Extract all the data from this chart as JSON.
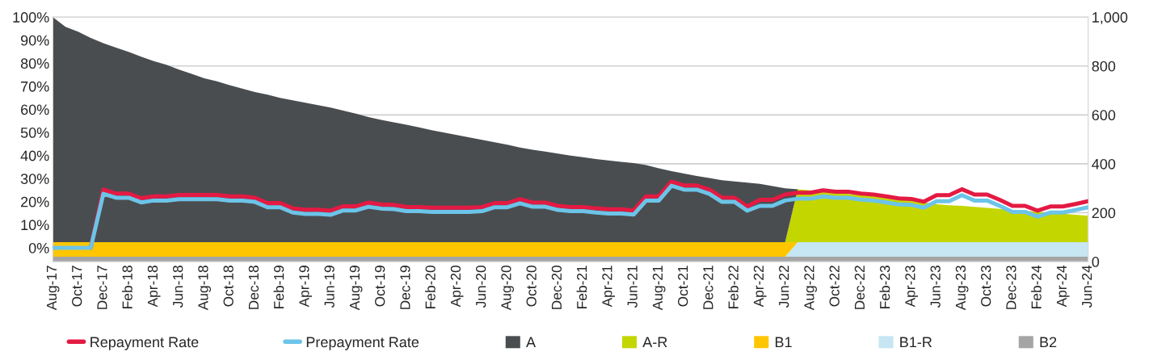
{
  "chart_data": {
    "type": "area",
    "stacked": true,
    "grid": "y",
    "legend": "bottom",
    "categories": [
      "Aug-17",
      null,
      "Oct-17",
      null,
      "Dec-17",
      null,
      "Feb-18",
      null,
      "Apr-18",
      null,
      "Jun-18",
      null,
      "Aug-18",
      null,
      "Oct-18",
      null,
      "Dec-18",
      null,
      "Feb-19",
      null,
      "Apr-19",
      null,
      "Jun-19",
      null,
      "Aug-19",
      null,
      "Oct-19",
      null,
      "Dec-19",
      null,
      "Feb-20",
      null,
      "Apr-20",
      null,
      "Jun-20",
      null,
      "Aug-20",
      null,
      "Oct-20",
      null,
      "Dec-20",
      null,
      "Feb-21",
      null,
      "Apr-21",
      null,
      "Jun-21",
      null,
      "Aug-21",
      null,
      "Oct-21",
      null,
      "Dec-21",
      null,
      "Feb-22",
      null,
      "Apr-22",
      null,
      "Jun-22",
      null,
      "Aug-22",
      null,
      "Oct-22",
      null,
      "Dec-22",
      null,
      "Feb-23",
      null,
      "Apr-23",
      null,
      "Jun-23",
      null,
      "Aug-23",
      null,
      "Oct-23",
      null,
      "Dec-23",
      null,
      "Feb-24",
      null,
      "Apr-24",
      null,
      "Jun-24"
    ],
    "ylim": [
      -6,
      100
    ],
    "yticks": [
      {
        "value": 0,
        "label": "0%"
      },
      {
        "value": 10,
        "label": "10%"
      },
      {
        "value": 20,
        "label": "20%"
      },
      {
        "value": 30,
        "label": "30%"
      },
      {
        "value": 40,
        "label": "40%"
      },
      {
        "value": 50,
        "label": "50%"
      },
      {
        "value": 60,
        "label": "60%"
      },
      {
        "value": 70,
        "label": "70%"
      },
      {
        "value": 80,
        "label": "80%"
      },
      {
        "value": 90,
        "label": "90%"
      },
      {
        "value": 100,
        "label": "100%"
      }
    ],
    "y2lim": [
      0,
      1000
    ],
    "y2ticks": [
      0,
      200,
      400,
      600,
      800,
      {
        "value": 1000,
        "label": "1,000"
      }
    ],
    "series": [
      {
        "name": "Repayment Rate",
        "type": "line",
        "axis": "y",
        "color": "#e31a43",
        "values": [
          null,
          null,
          null,
          0,
          25.2,
          23.5,
          23.5,
          21.5,
          22.3,
          22.3,
          22.9,
          22.9,
          22.9,
          22.9,
          22.3,
          22.3,
          21.7,
          19.4,
          19.4,
          17.1,
          16.5,
          16.5,
          16.1,
          18.0,
          18.0,
          19.6,
          18.8,
          18.6,
          17.7,
          17.7,
          17.4,
          17.4,
          17.4,
          17.4,
          17.7,
          19.4,
          19.4,
          21.1,
          19.6,
          19.6,
          18.2,
          17.7,
          17.7,
          17.1,
          16.7,
          16.7,
          16.2,
          22.3,
          22.3,
          28.7,
          27.0,
          27.0,
          25.2,
          21.7,
          21.7,
          17.9,
          20.8,
          20.8,
          23.1,
          23.9,
          23.9,
          24.9,
          24.3,
          24.3,
          23.5,
          23.1,
          22.3,
          21.4,
          21.2,
          20.0,
          22.8,
          22.8,
          25.4,
          23.1,
          23.1,
          20.8,
          18.2,
          18.2,
          16.1,
          17.9,
          17.9,
          19.0,
          20.2
        ]
      },
      {
        "name": "Prepayment Rate",
        "type": "line",
        "axis": "y",
        "color": "#6cc4e8",
        "values": [
          0,
          0,
          0,
          0,
          23.4,
          21.7,
          21.7,
          19.7,
          20.5,
          20.5,
          21.1,
          21.1,
          21.1,
          21.1,
          20.5,
          20.5,
          19.9,
          17.6,
          17.6,
          15.3,
          14.7,
          14.7,
          14.3,
          16.2,
          16.2,
          17.8,
          17.0,
          16.8,
          15.9,
          15.9,
          15.6,
          15.6,
          15.6,
          15.6,
          15.9,
          17.6,
          17.6,
          19.3,
          17.8,
          17.8,
          16.4,
          15.9,
          15.9,
          15.3,
          14.9,
          14.9,
          14.4,
          20.5,
          20.5,
          26.9,
          25.2,
          25.2,
          23.4,
          19.9,
          19.9,
          16.1,
          18.2,
          18.2,
          20.5,
          21.3,
          21.3,
          22.3,
          21.7,
          21.7,
          20.9,
          20.5,
          19.7,
          18.8,
          18.6,
          17.4,
          20.2,
          20.2,
          22.8,
          20.5,
          20.5,
          18.2,
          15.6,
          15.6,
          13.5,
          15.3,
          15.3,
          16.4,
          17.6
        ]
      },
      {
        "name": "B2",
        "axis": "y2",
        "color": "#a5a5a5",
        "values": [
          20,
          20,
          20,
          20,
          20,
          20,
          20,
          20,
          20,
          20,
          20,
          20,
          20,
          20,
          20,
          20,
          20,
          20,
          20,
          20,
          20,
          20,
          20,
          20,
          20,
          20,
          20,
          20,
          20,
          20,
          20,
          20,
          20,
          20,
          20,
          20,
          20,
          20,
          20,
          20,
          20,
          20,
          20,
          20,
          20,
          20,
          20,
          20,
          20,
          20,
          20,
          20,
          20,
          20,
          20,
          20,
          20,
          20,
          20,
          20,
          20,
          20,
          20,
          20,
          20,
          20,
          20,
          20,
          20,
          20,
          20,
          20,
          20,
          20,
          20,
          20,
          20,
          20,
          20,
          20,
          20,
          20,
          20
        ]
      },
      {
        "name": "B1-R",
        "axis": "y2",
        "color": "#c5e6f2",
        "values": [
          null,
          null,
          null,
          null,
          null,
          null,
          null,
          null,
          null,
          null,
          null,
          null,
          null,
          null,
          null,
          null,
          null,
          null,
          null,
          null,
          null,
          null,
          null,
          null,
          null,
          null,
          null,
          null,
          null,
          null,
          null,
          null,
          null,
          null,
          null,
          null,
          null,
          null,
          null,
          null,
          null,
          null,
          null,
          null,
          null,
          null,
          null,
          null,
          null,
          null,
          null,
          null,
          null,
          null,
          null,
          null,
          null,
          null,
          0,
          60,
          60,
          60,
          60,
          60,
          60,
          60,
          60,
          60,
          60,
          60,
          60,
          60,
          60,
          60,
          60,
          60,
          60,
          60,
          60,
          60,
          60,
          60,
          60
        ]
      },
      {
        "name": "B1",
        "axis": "y2",
        "color": "#ffc600",
        "values": [
          60,
          60,
          60,
          60,
          60,
          60,
          60,
          60,
          60,
          60,
          60,
          60,
          60,
          60,
          60,
          60,
          60,
          60,
          60,
          60,
          60,
          60,
          60,
          60,
          60,
          60,
          60,
          60,
          60,
          60,
          60,
          60,
          60,
          60,
          60,
          60,
          60,
          60,
          60,
          60,
          60,
          60,
          60,
          60,
          60,
          60,
          60,
          60,
          60,
          60,
          60,
          60,
          60,
          60,
          60,
          60,
          60,
          60,
          60,
          0,
          null,
          null,
          null,
          null,
          null,
          null,
          null,
          null,
          null,
          null,
          null,
          null,
          null,
          null,
          null,
          null,
          null,
          null,
          null,
          null,
          null,
          null,
          null
        ]
      },
      {
        "name": "A-R",
        "axis": "y2",
        "color": "#c4d600",
        "values": [
          null,
          null,
          null,
          null,
          null,
          null,
          null,
          null,
          null,
          null,
          null,
          null,
          null,
          null,
          null,
          null,
          null,
          null,
          null,
          null,
          null,
          null,
          null,
          null,
          null,
          null,
          null,
          null,
          null,
          null,
          null,
          null,
          null,
          null,
          null,
          null,
          null,
          null,
          null,
          null,
          null,
          null,
          null,
          null,
          null,
          null,
          null,
          null,
          null,
          null,
          null,
          null,
          null,
          null,
          null,
          null,
          null,
          null,
          0,
          216,
          212,
          207,
          202,
          197,
          192,
          187,
          181,
          175,
          169,
          162,
          155,
          151,
          148,
          144,
          140,
          136,
          132,
          128,
          124,
          120,
          116,
          112,
          108
        ]
      },
      {
        "name": "A",
        "axis": "y2",
        "color": "#4a4d50",
        "values": [
          920,
          880,
          860,
          835,
          813,
          795,
          778,
          758,
          740,
          725,
          705,
          688,
          670,
          657,
          642,
          628,
          614,
          603,
          590,
          580,
          570,
          560,
          550,
          538,
          525,
          511,
          500,
          490,
          480,
          469,
          458,
          448,
          438,
          428,
          418,
          408,
          398,
          387,
          378,
          370,
          362,
          354,
          347,
          340,
          334,
          328,
          323,
          315,
          302,
          290,
          280,
          270,
          262,
          253,
          248,
          243,
          238,
          229,
          220,
          0,
          null,
          null,
          null,
          null,
          null,
          null,
          null,
          null,
          null,
          null,
          null,
          null,
          null,
          null,
          null,
          null,
          null,
          null,
          null,
          null,
          null,
          null,
          null
        ]
      }
    ]
  }
}
